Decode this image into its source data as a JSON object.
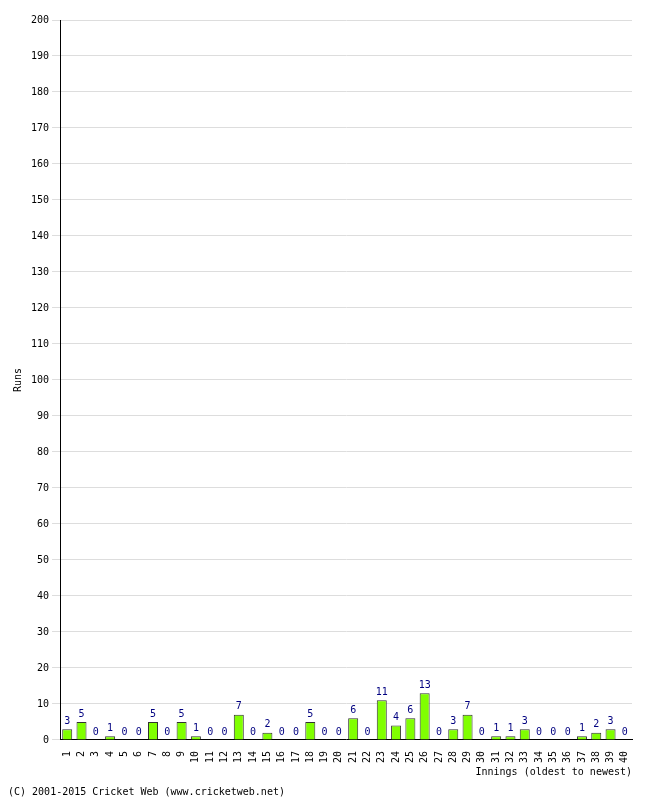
{
  "chart_data": {
    "type": "bar",
    "x_label": "Innings (oldest to newest)",
    "y_label": "Runs",
    "footer": "(C) 2001-2015 Cricket Web (www.cricketweb.net)",
    "categories": [
      "1",
      "2",
      "3",
      "4",
      "5",
      "6",
      "7",
      "8",
      "9",
      "10",
      "11",
      "12",
      "13",
      "14",
      "15",
      "16",
      "17",
      "18",
      "19",
      "20",
      "21",
      "22",
      "23",
      "24",
      "25",
      "26",
      "27",
      "28",
      "29",
      "30",
      "31",
      "32",
      "33",
      "34",
      "35",
      "36",
      "37",
      "38",
      "39",
      "40"
    ],
    "values": [
      3,
      5,
      0,
      1,
      0,
      0,
      5,
      0,
      5,
      1,
      0,
      0,
      7,
      0,
      2,
      0,
      0,
      5,
      0,
      0,
      6,
      0,
      11,
      4,
      6,
      13,
      0,
      3,
      7,
      0,
      1,
      1,
      3,
      0,
      0,
      0,
      1,
      2,
      3,
      0
    ],
    "color": "#80ff00",
    "ylim": [
      0,
      200
    ],
    "yticks": [
      0,
      10,
      20,
      30,
      40,
      50,
      60,
      70,
      80,
      90,
      100,
      110,
      120,
      130,
      140,
      150,
      160,
      170,
      180,
      190,
      200
    ],
    "grid": true,
    "data_labels": true
  }
}
